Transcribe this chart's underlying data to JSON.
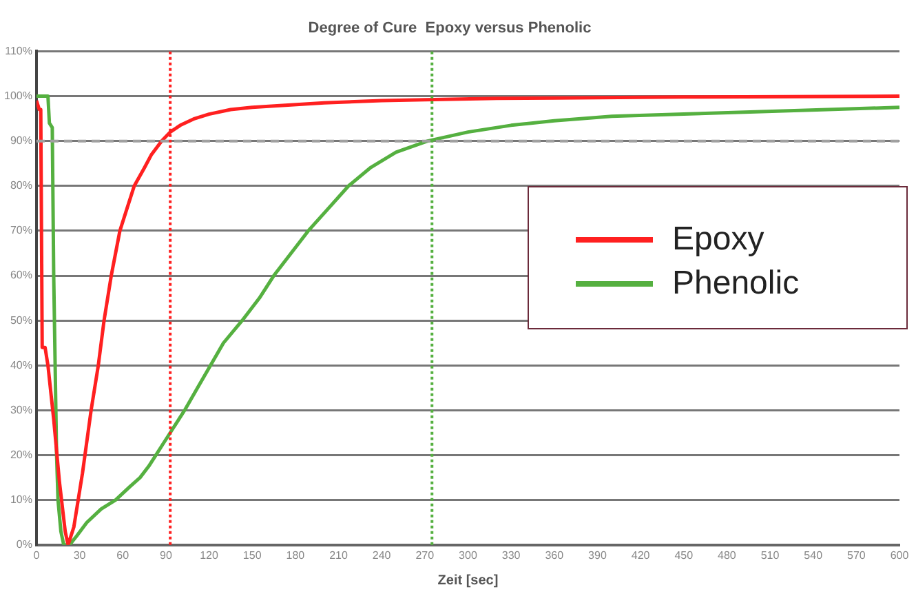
{
  "chart_data": {
    "type": "line",
    "title": "Degree of Cure  Epoxy versus Phenolic",
    "xlabel": "Zeit [sec]",
    "xlim": [
      0,
      600
    ],
    "xticks": [
      0,
      30,
      60,
      90,
      120,
      150,
      180,
      210,
      240,
      270,
      300,
      330,
      360,
      390,
      420,
      450,
      480,
      510,
      540,
      570,
      600
    ],
    "ylim": [
      0,
      110
    ],
    "yticks": [
      {
        "value": 0,
        "label": "0%"
      },
      {
        "value": 10,
        "label": "10%"
      },
      {
        "value": 20,
        "label": "20%"
      },
      {
        "value": 30,
        "label": "30%"
      },
      {
        "value": 40,
        "label": "40%"
      },
      {
        "value": 50,
        "label": "50%"
      },
      {
        "value": 60,
        "label": "60%"
      },
      {
        "value": 70,
        "label": "70%"
      },
      {
        "value": 80,
        "label": "80%"
      },
      {
        "value": 90,
        "label": "90%"
      },
      {
        "value": 100,
        "label": "100%"
      },
      {
        "value": 110,
        "label": "110%"
      }
    ],
    "grid": "y",
    "legend": "right",
    "marker": "none",
    "line_style": "solid",
    "series": [
      {
        "name": "Epoxy",
        "color": "#ff2020",
        "x": [
          0,
          2,
          3,
          4,
          6,
          8,
          12,
          16,
          20,
          22,
          26,
          32,
          38,
          43,
          47,
          52,
          58,
          63,
          68,
          75,
          80,
          87,
          93,
          100,
          110,
          120,
          135,
          150,
          175,
          200,
          240,
          270,
          320,
          360,
          450,
          600
        ],
        "values": [
          99,
          97,
          97,
          44,
          44,
          40,
          28,
          14,
          3,
          0,
          4,
          16,
          30,
          40,
          50,
          60,
          70,
          75,
          80,
          84,
          87,
          90,
          92,
          93.5,
          95,
          96,
          97,
          97.5,
          98,
          98.5,
          99,
          99.2,
          99.5,
          99.6,
          99.8,
          100
        ]
      },
      {
        "name": "Phenolic",
        "color": "#55b040",
        "x": [
          0,
          8,
          9,
          11,
          12,
          13,
          14,
          15,
          17,
          19,
          21,
          23,
          28,
          35,
          45,
          55,
          65,
          72,
          78,
          83,
          88,
          93,
          103,
          112,
          121,
          130,
          143,
          155,
          165,
          177,
          189,
          203,
          217,
          232,
          250,
          272,
          300,
          330,
          360,
          400,
          450,
          500,
          550,
          600
        ],
        "values": [
          100,
          100,
          94,
          93,
          60,
          40,
          20,
          10,
          3,
          0,
          0,
          0,
          2,
          5,
          8,
          10,
          13,
          15,
          17.5,
          20,
          22.5,
          25,
          30,
          35,
          40,
          45,
          50,
          55,
          60,
          65,
          70,
          75,
          80,
          84,
          87.5,
          90,
          92,
          93.5,
          94.5,
          95.5,
          96,
          96.5,
          97,
          97.5
        ]
      }
    ],
    "ref_lines": [
      {
        "axis": "y",
        "value": 90,
        "color": "#a0a0a0",
        "line_style": "dashed"
      },
      {
        "axis": "x",
        "value": 93,
        "color": "#ff2020",
        "line_style": "dotted"
      },
      {
        "axis": "x",
        "value": 275,
        "color": "#55b040",
        "line_style": "dotted"
      }
    ]
  }
}
